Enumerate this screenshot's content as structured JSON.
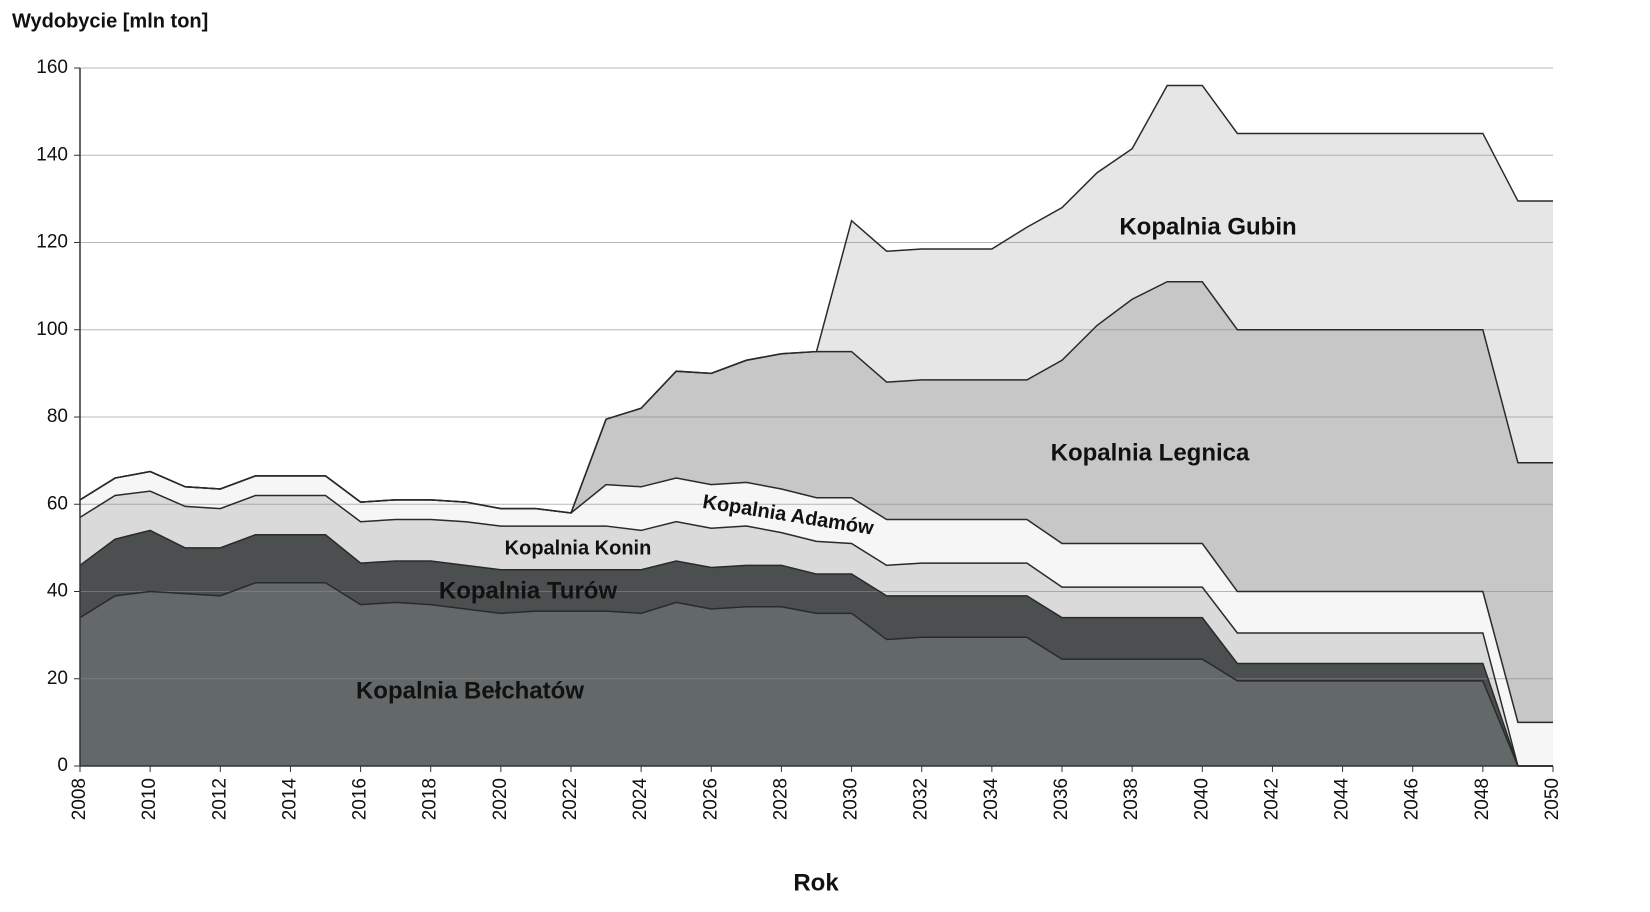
{
  "chart_data": {
    "type": "stacked_area",
    "y_label": "Wydobycie [mln ton]",
    "x_label": "Rok",
    "x": [
      2008,
      2009,
      2010,
      2011,
      2012,
      2013,
      2014,
      2015,
      2016,
      2017,
      2018,
      2019,
      2020,
      2021,
      2022,
      2023,
      2024,
      2025,
      2026,
      2027,
      2028,
      2029,
      2030,
      2031,
      2032,
      2033,
      2034,
      2035,
      2036,
      2037,
      2038,
      2039,
      2040,
      2041,
      2042,
      2043,
      2044,
      2045,
      2046,
      2047,
      2048,
      2049,
      2050
    ],
    "xlim": [
      2008,
      2050
    ],
    "xticks": [
      2008,
      2010,
      2012,
      2014,
      2016,
      2018,
      2020,
      2022,
      2024,
      2026,
      2028,
      2030,
      2032,
      2034,
      2036,
      2038,
      2040,
      2042,
      2044,
      2046,
      2048,
      2050
    ],
    "ylim": [
      0,
      160
    ],
    "yticks": [
      0,
      20,
      40,
      60,
      80,
      100,
      120,
      140,
      160
    ],
    "grid": true,
    "series": [
      {
        "name": "Kopalnia Bełchatów",
        "color": "#636868",
        "values": [
          34,
          39,
          40,
          39.5,
          39,
          42,
          42,
          42,
          37,
          37.5,
          37,
          36,
          35,
          35.5,
          35.5,
          35.5,
          35,
          37.5,
          36,
          36.5,
          36.5,
          35,
          35,
          29,
          29.5,
          29.5,
          29.5,
          29.5,
          24.5,
          24.5,
          24.5,
          24.5,
          24.5,
          19.5,
          19.5,
          19.5,
          19.5,
          19.5,
          19.5,
          19.5,
          19.5,
          0,
          0
        ]
      },
      {
        "name": "Kopalnia Turów",
        "color": "#4b4f4f",
        "values": [
          12,
          13,
          14,
          10.5,
          11,
          11,
          11,
          11,
          9.5,
          9.5,
          10,
          10,
          10,
          9.5,
          9.5,
          9.5,
          10,
          9.5,
          9.5,
          9.5,
          9.5,
          9,
          9,
          10,
          9.5,
          9.5,
          9.5,
          9.5,
          9.5,
          9.5,
          9.5,
          9.5,
          9.5,
          4,
          4,
          4,
          4,
          4,
          4,
          4,
          4,
          0,
          0
        ]
      },
      {
        "name": "Kopalnia Konin",
        "color": "#dadada",
        "values": [
          11,
          10,
          9,
          9.5,
          9,
          9,
          9,
          9,
          9.5,
          9.5,
          9.5,
          10,
          10,
          10,
          10,
          10,
          9,
          9,
          9,
          9,
          7.5,
          7.5,
          7,
          7,
          7.5,
          7.5,
          7.5,
          7.5,
          7,
          7,
          7,
          7,
          7,
          7,
          7,
          7,
          7,
          7,
          7,
          7,
          7,
          0,
          0
        ]
      },
      {
        "name": "Kopalnia Adamów",
        "color": "#f6f6f6",
        "values": [
          4,
          4,
          4.5,
          4.5,
          4.5,
          4.5,
          4.5,
          4.5,
          4.5,
          4.5,
          4.5,
          4.5,
          4,
          4,
          3,
          9.5,
          10,
          10,
          10,
          10,
          10,
          10,
          10.5,
          10.5,
          10,
          10,
          10,
          10,
          10,
          10,
          10,
          10,
          10,
          9.5,
          9.5,
          9.5,
          9.5,
          9.5,
          9.5,
          9.5,
          9.5,
          10,
          10
        ]
      },
      {
        "name": "Kopalnia Legnica",
        "color": "#c7c7c7",
        "values": [
          0,
          0,
          0,
          0,
          0,
          0,
          0,
          0,
          0,
          0,
          0,
          0,
          0,
          0,
          0,
          15,
          18,
          24.5,
          25.5,
          28,
          31,
          33.5,
          33.5,
          31.5,
          32,
          32,
          32,
          32,
          42,
          50,
          56,
          60,
          60,
          60,
          60,
          60,
          60,
          60,
          60,
          60,
          60,
          59.5,
          59.5
        ]
      },
      {
        "name": "Kopalnia Gubin",
        "color": "#e6e6e6",
        "values": [
          0,
          0,
          0,
          0,
          0,
          0,
          0,
          0,
          0,
          0,
          0,
          0,
          0,
          0,
          0,
          0,
          0,
          0,
          0,
          0,
          0,
          0,
          30,
          30,
          30,
          30,
          30,
          35,
          35,
          35,
          34.5,
          45,
          45,
          45,
          45,
          45,
          45,
          45,
          45,
          45,
          45,
          60,
          60
        ]
      }
    ]
  }
}
